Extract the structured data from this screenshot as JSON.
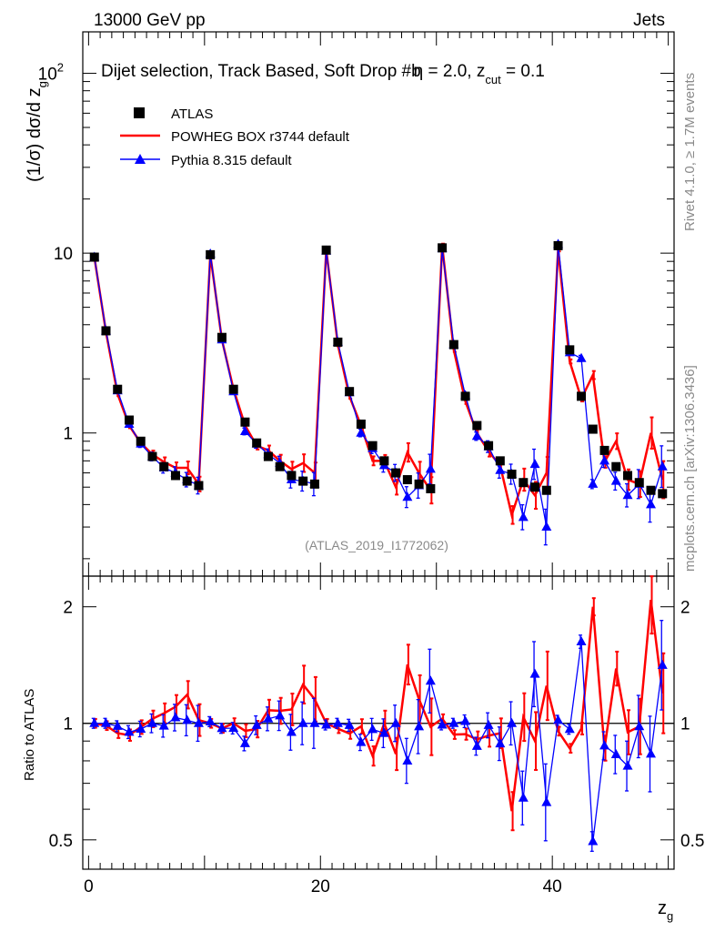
{
  "header": {
    "energy_label": "13000 GeV pp",
    "process_label": "Jets"
  },
  "side": {
    "rivet_label": "Rivet 4.1.0, ≥ 1.7M events",
    "url_label": "mcplots.cern.ch [arXiv:1306.3436]"
  },
  "colors": {
    "atlas": "#000000",
    "powheg": "#ff0000",
    "pythia": "#0000ff"
  },
  "chart_data": [
    {
      "type": "scatter",
      "panel": "main",
      "title": "Dijet selection, Track Based, Soft Drop #b",
      "title_eta": "η = 2.0, z",
      "title_sub": "cut",
      "title_tail": " = 0.1",
      "ylabel_pre": "(1/σ) dσ/d z",
      "ylabel_sub": "g",
      "xlabel": "z",
      "xlabel_sub": "g",
      "yscale": "log",
      "ylim": [
        0.16,
        170
      ],
      "xlim": [
        -0.5,
        50.5
      ],
      "yticks": [
        {
          "v": 1,
          "label": "1"
        },
        {
          "v": 10,
          "label": "10"
        },
        {
          "v": 100,
          "label": "10",
          "sup": "2"
        }
      ],
      "watermark": "(ATLAS_2019_I1772062)",
      "legend": [
        "ATLAS",
        "POWHEG BOX r3744 default",
        "Pythia 8.315 default"
      ],
      "x": [
        0.5,
        1.5,
        2.5,
        3.5,
        4.5,
        5.5,
        6.5,
        7.5,
        8.5,
        9.5,
        10.5,
        11.5,
        12.5,
        13.5,
        14.5,
        15.5,
        16.5,
        17.5,
        18.5,
        19.5,
        20.5,
        21.5,
        22.5,
        23.5,
        24.5,
        25.5,
        26.5,
        27.5,
        28.5,
        29.5,
        30.5,
        31.5,
        32.5,
        33.5,
        34.5,
        35.5,
        36.5,
        37.5,
        38.5,
        39.5,
        40.5,
        41.5,
        42.5,
        43.5,
        44.5,
        45.5,
        46.5,
        47.5,
        48.5,
        49.5
      ],
      "series": [
        {
          "name": "ATLAS",
          "values": [
            9.5,
            3.7,
            1.75,
            1.18,
            0.9,
            0.74,
            0.65,
            0.58,
            0.54,
            0.51,
            9.8,
            3.4,
            1.75,
            1.15,
            0.88,
            0.74,
            0.65,
            0.58,
            0.54,
            0.52,
            10.4,
            3.2,
            1.7,
            1.12,
            0.85,
            0.7,
            0.6,
            0.55,
            0.52,
            0.49,
            10.7,
            3.1,
            1.6,
            1.1,
            0.85,
            0.7,
            0.59,
            0.53,
            0.5,
            0.48,
            11.0,
            2.9,
            1.6,
            1.05,
            0.8,
            0.65,
            0.58,
            0.53,
            0.48,
            0.46
          ]
        },
        {
          "name": "POWHEG BOX r3744 default",
          "values": [
            9.5,
            3.65,
            1.65,
            1.1,
            0.88,
            0.76,
            0.69,
            0.64,
            0.64,
            0.52,
            9.8,
            3.3,
            1.75,
            1.1,
            0.85,
            0.8,
            0.7,
            0.63,
            0.68,
            0.6,
            10.4,
            3.1,
            1.6,
            1.1,
            0.7,
            0.7,
            0.5,
            0.78,
            0.6,
            0.48,
            11.0,
            2.9,
            1.5,
            1.0,
            0.79,
            0.66,
            0.35,
            0.55,
            0.45,
            0.6,
            10.5,
            2.5,
            1.55,
            2.1,
            0.69,
            0.9,
            0.55,
            0.52,
            1.0,
            0.55
          ]
        },
        {
          "name": "Pythia 8.315 default",
          "values": [
            9.5,
            3.7,
            1.72,
            1.12,
            0.87,
            0.74,
            0.64,
            0.6,
            0.55,
            0.51,
            9.9,
            3.3,
            1.7,
            1.02,
            0.87,
            0.76,
            0.68,
            0.55,
            0.54,
            0.52,
            10.3,
            3.2,
            1.68,
            1.0,
            0.82,
            0.66,
            0.6,
            0.44,
            0.51,
            0.63,
            10.6,
            3.1,
            1.62,
            0.96,
            0.84,
            0.62,
            0.59,
            0.34,
            0.67,
            0.3,
            11.2,
            2.8,
            2.6,
            0.52,
            0.7,
            0.54,
            0.45,
            0.52,
            0.4,
            0.65
          ]
        }
      ]
    },
    {
      "type": "scatter",
      "panel": "ratio",
      "ylabel": "Ratio to ATLAS",
      "yscale": "log",
      "ylim": [
        0.42,
        2.4
      ],
      "xlim": [
        -0.5,
        50.5
      ],
      "yticks": [
        {
          "v": 0.5,
          "label": "0.5"
        },
        {
          "v": 1,
          "label": "1"
        },
        {
          "v": 2,
          "label": "2"
        }
      ],
      "xticks": [
        {
          "v": 0,
          "label": "0"
        },
        {
          "v": 20,
          "label": "20"
        },
        {
          "v": 40,
          "label": "40"
        }
      ],
      "reference_line": 1
    }
  ]
}
